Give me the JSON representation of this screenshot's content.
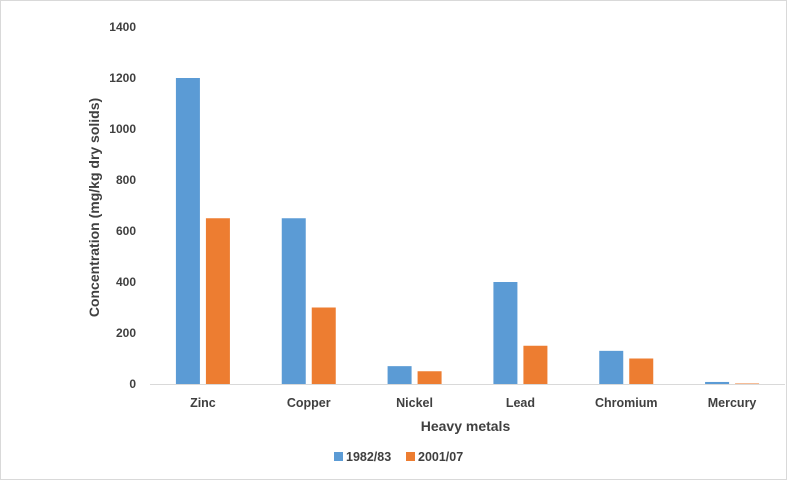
{
  "chart_data": {
    "type": "bar",
    "title": "",
    "xlabel": "Heavy metals",
    "ylabel": "Concentration (mg/kg dry solids)",
    "categories": [
      "Zinc",
      "Copper",
      "Nickel",
      "Lead",
      "Chromium",
      "Mercury"
    ],
    "series": [
      {
        "name": "1982/83",
        "color": "#5b9bd5",
        "values": [
          1200,
          650,
          70,
          400,
          130,
          8
        ]
      },
      {
        "name": "2001/07",
        "color": "#ed7d31",
        "values": [
          650,
          300,
          50,
          150,
          100,
          2
        ]
      }
    ],
    "ylim": [
      0,
      1400
    ],
    "yticks": [
      0,
      200,
      400,
      600,
      800,
      1000,
      1200,
      1400
    ],
    "grid": false,
    "legend_position": "bottom"
  }
}
